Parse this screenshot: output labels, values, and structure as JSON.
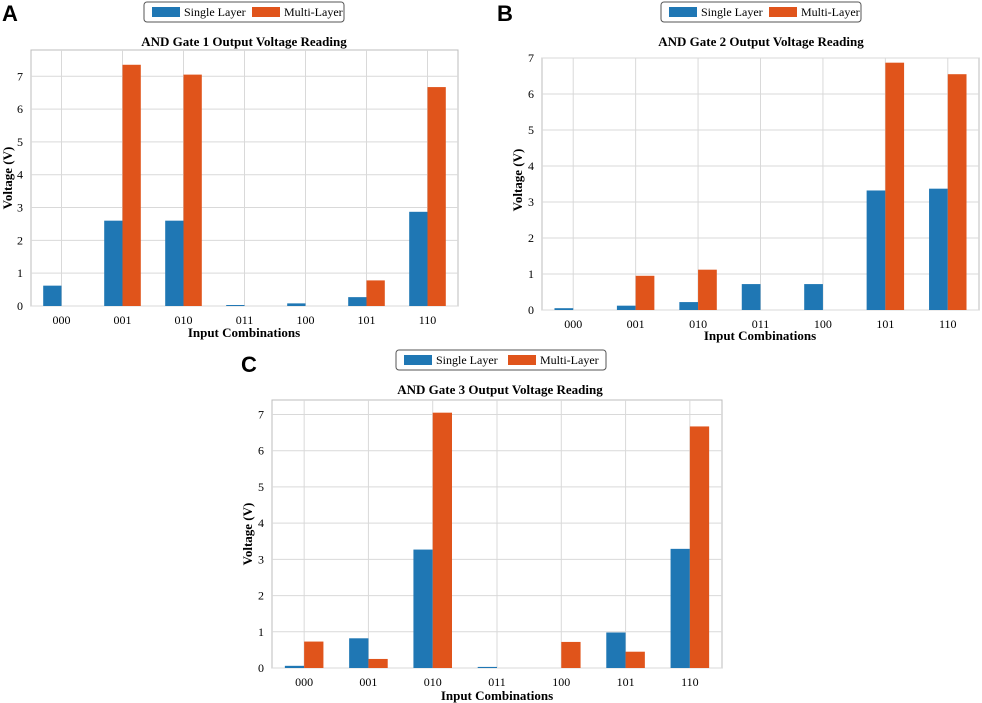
{
  "colors": {
    "single": "#1f77b4",
    "multi": "#e0541b",
    "grid": "#d9d9d9",
    "frame": "#bcbcbc"
  },
  "chart_data": [
    {
      "panel": "A",
      "type": "bar",
      "title": "AND Gate 1 Output Voltage Reading",
      "xlabel": "Input Combinations",
      "ylabel": "Voltage (V)",
      "ylim": [
        0,
        7.8
      ],
      "yticks": [
        0,
        1,
        2,
        3,
        4,
        5,
        6,
        7
      ],
      "grid": true,
      "legend": "top-center",
      "categories": [
        "000",
        "001",
        "010",
        "011",
        "100",
        "101",
        "110"
      ],
      "series": [
        {
          "name": "Single Layer",
          "values": [
            0.62,
            2.6,
            2.6,
            0.03,
            0.08,
            0.27,
            2.87
          ]
        },
        {
          "name": "Multi-Layer",
          "values": [
            0,
            7.35,
            7.05,
            0,
            0,
            0.78,
            6.67
          ]
        }
      ]
    },
    {
      "panel": "B",
      "type": "bar",
      "title": "AND Gate 2 Output Voltage Reading",
      "xlabel": "Input Combinations",
      "ylabel": "Voltage (V)",
      "ylim": [
        0,
        7
      ],
      "yticks": [
        0,
        1,
        2,
        3,
        4,
        5,
        6,
        7
      ],
      "grid": true,
      "legend": "top-center",
      "categories": [
        "000",
        "001",
        "010",
        "011",
        "100",
        "101",
        "110"
      ],
      "series": [
        {
          "name": "Single Layer",
          "values": [
            0.05,
            0.12,
            0.22,
            0.72,
            0.72,
            3.32,
            3.37
          ]
        },
        {
          "name": "Multi-Layer",
          "values": [
            0,
            0.95,
            1.12,
            0,
            0,
            6.87,
            6.55
          ]
        }
      ]
    },
    {
      "panel": "C",
      "type": "bar",
      "title": "AND Gate 3 Output Voltage Reading",
      "xlabel": "Input Combinations",
      "ylabel": "Voltage (V)",
      "ylim": [
        0,
        7.4
      ],
      "yticks": [
        0,
        1,
        2,
        3,
        4,
        5,
        6,
        7
      ],
      "grid": true,
      "legend": "top-center",
      "categories": [
        "000",
        "001",
        "010",
        "011",
        "100",
        "101",
        "110"
      ],
      "series": [
        {
          "name": "Single Layer",
          "values": [
            0.06,
            0.82,
            3.27,
            0.03,
            0,
            0.98,
            3.29
          ]
        },
        {
          "name": "Multi-Layer",
          "values": [
            0.73,
            0.25,
            7.05,
            0,
            0.72,
            0.45,
            6.67
          ]
        }
      ]
    }
  ]
}
